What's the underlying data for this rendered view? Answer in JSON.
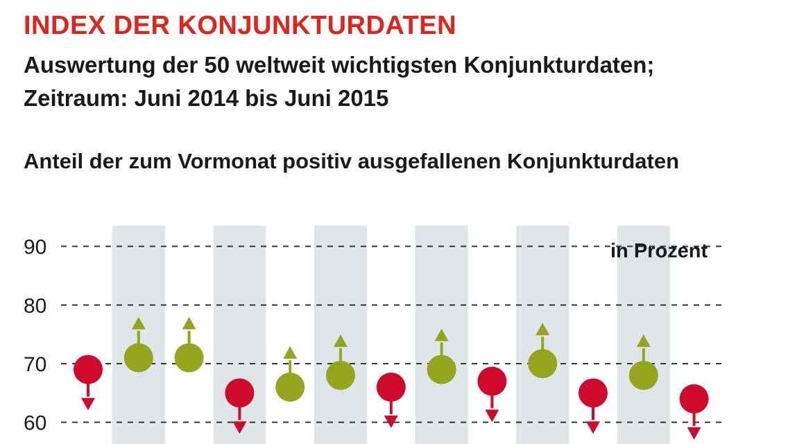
{
  "title": "INDEX DER KONJUNKTURDATEN",
  "subtitle": {
    "line1": "Auswertung der 50 weltweit wichtigsten Konjunkturdaten;",
    "line2": "Zeitraum: Juni 2014 bis Juni 2015"
  },
  "colors": {
    "up": "#94a51e",
    "down": "#cf0a2c",
    "band": "#dfe5e8",
    "title": "#e2231a",
    "grid": "#333333"
  },
  "chart_data": {
    "type": "scatter",
    "title": "Anteil der zum Vormonat positiv ausgefallenen Konjunkturdaten",
    "unit_label": "in Prozent",
    "ylabel": "",
    "xlabel": "",
    "ylim": [
      56.3,
      93.5
    ],
    "yticks": [
      90,
      80,
      70,
      60
    ],
    "grid": true,
    "x": [
      1,
      2,
      3,
      4,
      5,
      6,
      7,
      8,
      9,
      10,
      11,
      12,
      13
    ],
    "values": [
      69,
      71,
      71,
      65,
      66,
      68,
      66,
      69,
      67,
      70,
      65,
      68,
      64
    ],
    "direction": [
      "down",
      "up",
      "up",
      "down",
      "up",
      "up",
      "down",
      "up",
      "down",
      "up",
      "down",
      "up",
      "down"
    ],
    "shaded_columns": [
      2,
      4,
      6,
      8,
      10,
      12
    ]
  }
}
